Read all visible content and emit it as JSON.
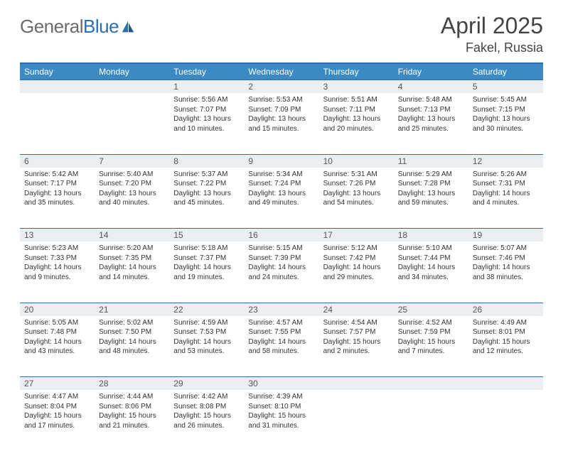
{
  "brand": {
    "name_part1": "General",
    "name_part2": "Blue"
  },
  "title": "April 2025",
  "location": "Fakel, Russia",
  "header_bg": "#3b8ac4",
  "header_border": "#2b6fa8",
  "daynum_bg": "#eceff1",
  "text_color": "#333333",
  "title_color": "#444444",
  "logo_gray": "#6b6b6b",
  "logo_blue": "#2b6fb3",
  "font_size_title": 32,
  "font_size_location": 18,
  "font_size_dayname": 12,
  "font_size_body": 10,
  "day_names": [
    "Sunday",
    "Monday",
    "Tuesday",
    "Wednesday",
    "Thursday",
    "Friday",
    "Saturday"
  ],
  "weeks": [
    [
      null,
      null,
      {
        "n": "1",
        "sr": "Sunrise: 5:56 AM",
        "ss": "Sunset: 7:07 PM",
        "dl1": "Daylight: 13 hours",
        "dl2": "and 10 minutes."
      },
      {
        "n": "2",
        "sr": "Sunrise: 5:53 AM",
        "ss": "Sunset: 7:09 PM",
        "dl1": "Daylight: 13 hours",
        "dl2": "and 15 minutes."
      },
      {
        "n": "3",
        "sr": "Sunrise: 5:51 AM",
        "ss": "Sunset: 7:11 PM",
        "dl1": "Daylight: 13 hours",
        "dl2": "and 20 minutes."
      },
      {
        "n": "4",
        "sr": "Sunrise: 5:48 AM",
        "ss": "Sunset: 7:13 PM",
        "dl1": "Daylight: 13 hours",
        "dl2": "and 25 minutes."
      },
      {
        "n": "5",
        "sr": "Sunrise: 5:45 AM",
        "ss": "Sunset: 7:15 PM",
        "dl1": "Daylight: 13 hours",
        "dl2": "and 30 minutes."
      }
    ],
    [
      {
        "n": "6",
        "sr": "Sunrise: 5:42 AM",
        "ss": "Sunset: 7:17 PM",
        "dl1": "Daylight: 13 hours",
        "dl2": "and 35 minutes."
      },
      {
        "n": "7",
        "sr": "Sunrise: 5:40 AM",
        "ss": "Sunset: 7:20 PM",
        "dl1": "Daylight: 13 hours",
        "dl2": "and 40 minutes."
      },
      {
        "n": "8",
        "sr": "Sunrise: 5:37 AM",
        "ss": "Sunset: 7:22 PM",
        "dl1": "Daylight: 13 hours",
        "dl2": "and 45 minutes."
      },
      {
        "n": "9",
        "sr": "Sunrise: 5:34 AM",
        "ss": "Sunset: 7:24 PM",
        "dl1": "Daylight: 13 hours",
        "dl2": "and 49 minutes."
      },
      {
        "n": "10",
        "sr": "Sunrise: 5:31 AM",
        "ss": "Sunset: 7:26 PM",
        "dl1": "Daylight: 13 hours",
        "dl2": "and 54 minutes."
      },
      {
        "n": "11",
        "sr": "Sunrise: 5:29 AM",
        "ss": "Sunset: 7:28 PM",
        "dl1": "Daylight: 13 hours",
        "dl2": "and 59 minutes."
      },
      {
        "n": "12",
        "sr": "Sunrise: 5:26 AM",
        "ss": "Sunset: 7:31 PM",
        "dl1": "Daylight: 14 hours",
        "dl2": "and 4 minutes."
      }
    ],
    [
      {
        "n": "13",
        "sr": "Sunrise: 5:23 AM",
        "ss": "Sunset: 7:33 PM",
        "dl1": "Daylight: 14 hours",
        "dl2": "and 9 minutes."
      },
      {
        "n": "14",
        "sr": "Sunrise: 5:20 AM",
        "ss": "Sunset: 7:35 PM",
        "dl1": "Daylight: 14 hours",
        "dl2": "and 14 minutes."
      },
      {
        "n": "15",
        "sr": "Sunrise: 5:18 AM",
        "ss": "Sunset: 7:37 PM",
        "dl1": "Daylight: 14 hours",
        "dl2": "and 19 minutes."
      },
      {
        "n": "16",
        "sr": "Sunrise: 5:15 AM",
        "ss": "Sunset: 7:39 PM",
        "dl1": "Daylight: 14 hours",
        "dl2": "and 24 minutes."
      },
      {
        "n": "17",
        "sr": "Sunrise: 5:12 AM",
        "ss": "Sunset: 7:42 PM",
        "dl1": "Daylight: 14 hours",
        "dl2": "and 29 minutes."
      },
      {
        "n": "18",
        "sr": "Sunrise: 5:10 AM",
        "ss": "Sunset: 7:44 PM",
        "dl1": "Daylight: 14 hours",
        "dl2": "and 34 minutes."
      },
      {
        "n": "19",
        "sr": "Sunrise: 5:07 AM",
        "ss": "Sunset: 7:46 PM",
        "dl1": "Daylight: 14 hours",
        "dl2": "and 38 minutes."
      }
    ],
    [
      {
        "n": "20",
        "sr": "Sunrise: 5:05 AM",
        "ss": "Sunset: 7:48 PM",
        "dl1": "Daylight: 14 hours",
        "dl2": "and 43 minutes."
      },
      {
        "n": "21",
        "sr": "Sunrise: 5:02 AM",
        "ss": "Sunset: 7:50 PM",
        "dl1": "Daylight: 14 hours",
        "dl2": "and 48 minutes."
      },
      {
        "n": "22",
        "sr": "Sunrise: 4:59 AM",
        "ss": "Sunset: 7:53 PM",
        "dl1": "Daylight: 14 hours",
        "dl2": "and 53 minutes."
      },
      {
        "n": "23",
        "sr": "Sunrise: 4:57 AM",
        "ss": "Sunset: 7:55 PM",
        "dl1": "Daylight: 14 hours",
        "dl2": "and 58 minutes."
      },
      {
        "n": "24",
        "sr": "Sunrise: 4:54 AM",
        "ss": "Sunset: 7:57 PM",
        "dl1": "Daylight: 15 hours",
        "dl2": "and 2 minutes."
      },
      {
        "n": "25",
        "sr": "Sunrise: 4:52 AM",
        "ss": "Sunset: 7:59 PM",
        "dl1": "Daylight: 15 hours",
        "dl2": "and 7 minutes."
      },
      {
        "n": "26",
        "sr": "Sunrise: 4:49 AM",
        "ss": "Sunset: 8:01 PM",
        "dl1": "Daylight: 15 hours",
        "dl2": "and 12 minutes."
      }
    ],
    [
      {
        "n": "27",
        "sr": "Sunrise: 4:47 AM",
        "ss": "Sunset: 8:04 PM",
        "dl1": "Daylight: 15 hours",
        "dl2": "and 17 minutes."
      },
      {
        "n": "28",
        "sr": "Sunrise: 4:44 AM",
        "ss": "Sunset: 8:06 PM",
        "dl1": "Daylight: 15 hours",
        "dl2": "and 21 minutes."
      },
      {
        "n": "29",
        "sr": "Sunrise: 4:42 AM",
        "ss": "Sunset: 8:08 PM",
        "dl1": "Daylight: 15 hours",
        "dl2": "and 26 minutes."
      },
      {
        "n": "30",
        "sr": "Sunrise: 4:39 AM",
        "ss": "Sunset: 8:10 PM",
        "dl1": "Daylight: 15 hours",
        "dl2": "and 31 minutes."
      },
      null,
      null,
      null
    ]
  ]
}
